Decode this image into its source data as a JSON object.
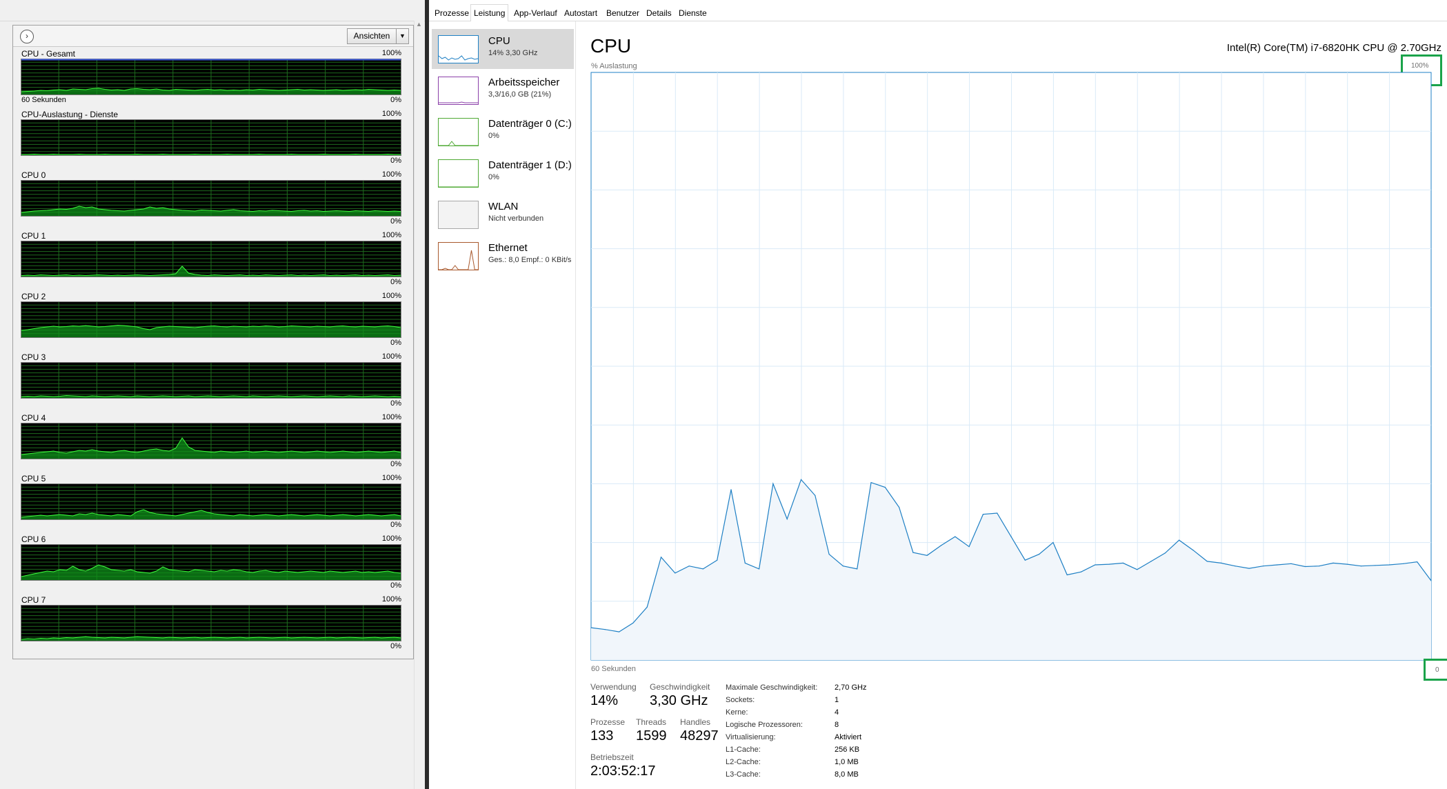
{
  "left_panel": {
    "views_button": "Ansichten",
    "collapse_glyph": "›",
    "charts": [
      {
        "label": "CPU - Gesamt",
        "max": "100%",
        "min": "0%",
        "sub": "60 Sekunden"
      },
      {
        "label": "CPU-Auslastung - Dienste",
        "max": "100%",
        "min": "0%",
        "sub": ""
      },
      {
        "label": "CPU 0",
        "max": "100%",
        "min": "0%",
        "sub": ""
      },
      {
        "label": "CPU 1",
        "max": "100%",
        "min": "0%",
        "sub": ""
      },
      {
        "label": "CPU 2",
        "max": "100%",
        "min": "0%",
        "sub": ""
      },
      {
        "label": "CPU 3",
        "max": "100%",
        "min": "0%",
        "sub": ""
      },
      {
        "label": "CPU 4",
        "max": "100%",
        "min": "0%",
        "sub": ""
      },
      {
        "label": "CPU 5",
        "max": "100%",
        "min": "0%",
        "sub": ""
      },
      {
        "label": "CPU 6",
        "max": "100%",
        "min": "0%",
        "sub": ""
      },
      {
        "label": "CPU 7",
        "max": "100%",
        "min": "0%",
        "sub": ""
      }
    ],
    "series": [
      [
        8,
        9,
        10,
        12,
        11,
        13,
        14,
        12,
        16,
        15,
        14,
        17,
        18,
        15,
        13,
        14,
        12,
        16,
        17,
        15,
        14,
        16,
        13,
        12,
        15,
        14,
        13,
        12,
        14,
        15,
        13,
        14,
        12,
        13,
        12,
        14,
        13,
        15,
        14,
        13,
        12,
        13,
        14,
        15,
        13,
        14,
        13,
        12,
        13,
        14,
        12,
        13,
        14,
        13,
        15,
        14,
        13,
        12,
        13,
        12
      ],
      [
        2,
        2,
        3,
        2,
        2,
        3,
        2,
        2,
        2,
        3,
        2,
        2,
        2,
        3,
        2,
        2,
        2,
        2,
        3,
        2,
        2,
        2,
        3,
        2,
        2,
        2,
        2,
        3,
        2,
        2,
        2,
        2,
        3,
        2,
        2,
        2,
        2,
        3,
        2,
        2,
        2,
        2,
        3,
        2,
        2,
        2,
        2,
        3,
        2,
        2,
        2,
        2,
        3,
        2,
        2,
        2,
        2,
        3,
        2,
        2
      ],
      [
        10,
        12,
        14,
        15,
        16,
        18,
        20,
        19,
        22,
        28,
        24,
        26,
        20,
        18,
        16,
        15,
        14,
        16,
        18,
        20,
        26,
        22,
        24,
        20,
        18,
        16,
        15,
        14,
        17,
        16,
        15,
        14,
        16,
        18,
        15,
        14,
        13,
        15,
        14,
        16,
        15,
        14,
        13,
        15,
        16,
        14,
        15,
        13,
        14,
        15,
        14,
        13,
        15,
        14,
        13,
        15,
        14,
        13,
        14,
        13
      ],
      [
        3,
        4,
        3,
        5,
        4,
        3,
        4,
        5,
        3,
        4,
        3,
        4,
        5,
        4,
        3,
        4,
        3,
        4,
        5,
        4,
        3,
        4,
        5,
        6,
        8,
        30,
        10,
        6,
        4,
        3,
        5,
        4,
        3,
        4,
        5,
        3,
        4,
        3,
        5,
        4,
        3,
        4,
        5,
        3,
        4,
        3,
        4,
        5,
        3,
        4,
        3,
        4,
        5,
        3,
        4,
        3,
        4,
        5,
        3,
        4
      ],
      [
        20,
        22,
        25,
        28,
        30,
        32,
        30,
        31,
        33,
        32,
        34,
        32,
        30,
        31,
        33,
        35,
        34,
        32,
        30,
        25,
        22,
        28,
        30,
        32,
        31,
        30,
        29,
        28,
        30,
        32,
        33,
        31,
        30,
        32,
        31,
        30,
        32,
        31,
        33,
        32,
        30,
        31,
        33,
        32,
        31,
        30,
        32,
        31,
        30,
        32,
        33,
        31,
        30,
        32,
        31,
        30,
        32,
        33,
        31,
        28
      ],
      [
        4,
        5,
        4,
        6,
        5,
        4,
        5,
        7,
        6,
        5,
        4,
        6,
        5,
        4,
        5,
        6,
        5,
        4,
        6,
        5,
        4,
        5,
        6,
        5,
        4,
        5,
        6,
        4,
        5,
        6,
        5,
        4,
        5,
        6,
        5,
        4,
        6,
        5,
        4,
        5,
        6,
        5,
        4,
        5,
        6,
        5,
        4,
        5,
        6,
        5,
        4,
        6,
        5,
        4,
        5,
        6,
        5,
        4,
        5,
        4
      ],
      [
        12,
        14,
        16,
        18,
        20,
        22,
        18,
        16,
        20,
        24,
        22,
        26,
        22,
        20,
        18,
        22,
        24,
        20,
        18,
        22,
        26,
        28,
        24,
        22,
        30,
        60,
        34,
        24,
        22,
        20,
        18,
        22,
        20,
        18,
        20,
        22,
        18,
        20,
        22,
        20,
        18,
        20,
        22,
        20,
        18,
        20,
        22,
        20,
        18,
        20,
        22,
        20,
        18,
        20,
        22,
        20,
        18,
        20,
        22,
        18
      ],
      [
        6,
        8,
        10,
        12,
        10,
        12,
        14,
        12,
        10,
        16,
        14,
        18,
        14,
        12,
        10,
        14,
        12,
        10,
        22,
        28,
        20,
        16,
        14,
        12,
        10,
        14,
        18,
        22,
        26,
        20,
        16,
        14,
        12,
        10,
        14,
        12,
        10,
        12,
        14,
        12,
        10,
        12,
        14,
        12,
        10,
        12,
        14,
        12,
        10,
        12,
        14,
        12,
        10,
        12,
        14,
        12,
        10,
        12,
        14,
        10
      ],
      [
        10,
        14,
        18,
        22,
        26,
        24,
        30,
        28,
        40,
        30,
        26,
        34,
        44,
        38,
        30,
        28,
        26,
        30,
        24,
        22,
        20,
        26,
        38,
        30,
        28,
        26,
        24,
        30,
        28,
        26,
        24,
        28,
        26,
        30,
        28,
        24,
        22,
        26,
        28,
        24,
        22,
        26,
        24,
        22,
        24,
        26,
        24,
        22,
        26,
        24,
        22,
        24,
        26,
        22,
        24,
        22,
        24,
        26,
        22,
        20
      ],
      [
        4,
        6,
        5,
        7,
        6,
        8,
        7,
        9,
        8,
        10,
        12,
        10,
        9,
        8,
        10,
        9,
        8,
        10,
        12,
        11,
        10,
        9,
        8,
        10,
        9,
        8,
        9,
        10,
        8,
        9,
        10,
        9,
        8,
        9,
        10,
        8,
        9,
        10,
        9,
        8,
        9,
        10,
        8,
        9,
        10,
        9,
        8,
        9,
        10,
        8,
        9,
        10,
        9,
        8,
        9,
        10,
        8,
        9,
        10,
        8
      ]
    ]
  },
  "tabs": [
    "Prozesse",
    "Leistung",
    "App-Verlauf",
    "Autostart",
    "Benutzer",
    "Details",
    "Dienste"
  ],
  "active_tab": "Leistung",
  "sidebar": [
    {
      "title": "CPU",
      "sub": "14% 3,30 GHz",
      "color": "#1d7fc4",
      "selected": true
    },
    {
      "title": "Arbeitsspeicher",
      "sub": "3,3/16,0 GB (21%)",
      "color": "#8b3fa8",
      "selected": false
    },
    {
      "title": "Datenträger 0 (C:)",
      "sub": "0%",
      "color": "#4da832",
      "selected": false
    },
    {
      "title": "Datenträger 1 (D:)",
      "sub": "0%",
      "color": "#4da832",
      "selected": false
    },
    {
      "title": "WLAN",
      "sub": "Nicht verbunden",
      "color": "#a8a8a8",
      "selected": false
    },
    {
      "title": "Ethernet",
      "sub": "Ges.: 8,0 Empf.: 0 KBit/s",
      "color": "#a8582c",
      "selected": false
    }
  ],
  "main": {
    "title": "CPU",
    "cpu_name": "Intel(R) Core(TM) i7-6820HK CPU @ 2.70GHz",
    "y_axis_label": "% Auslastung",
    "y_max": "100%",
    "y_min": "0",
    "x_axis_label": "60 Sekunden",
    "stats": {
      "usage_label": "Verwendung",
      "usage_value": "14%",
      "speed_label": "Geschwindigkeit",
      "speed_value": "3,30 GHz",
      "processes_label": "Prozesse",
      "processes_value": "133",
      "threads_label": "Threads",
      "threads_value": "1599",
      "handles_label": "Handles",
      "handles_value": "48297",
      "uptime_label": "Betriebszeit",
      "uptime_value": "2:03:52:17"
    },
    "specs": [
      {
        "key": "Maximale Geschwindigkeit:",
        "value": "2,70 GHz"
      },
      {
        "key": "Sockets:",
        "value": "1"
      },
      {
        "key": "Kerne:",
        "value": "4"
      },
      {
        "key": "Logische Prozessoren:",
        "value": "8"
      },
      {
        "key": "Virtualisierung:",
        "value": "Aktiviert"
      },
      {
        "key": "L1-Cache:",
        "value": "256 KB"
      },
      {
        "key": "L2-Cache:",
        "value": "1,0 MB"
      },
      {
        "key": "L3-Cache:",
        "value": "8,0 MB"
      }
    ]
  },
  "chart_data": {
    "type": "area",
    "ylabel": "% Auslastung",
    "xlabel": "60 Sekunden",
    "ylim": [
      0,
      100
    ],
    "x": [
      60,
      59,
      58,
      57,
      56,
      55,
      54,
      53,
      52,
      51,
      50,
      49,
      48,
      47,
      46,
      45,
      44,
      43,
      42,
      41,
      40,
      39,
      38,
      37,
      36,
      35,
      34,
      33,
      32,
      31,
      30,
      29,
      28,
      27,
      26,
      25,
      24,
      23,
      22,
      21,
      20,
      19,
      18,
      17,
      16,
      15,
      14,
      13,
      12,
      11,
      10,
      9,
      8,
      7,
      6,
      5,
      4,
      3,
      2,
      1,
      0
    ],
    "series": [
      {
        "values": [
          5.5,
          5.2,
          4.8,
          6.3,
          9.0,
          17.5,
          14.8,
          16.0,
          15.5,
          17.0,
          29.0,
          16.5,
          15.5,
          30.0,
          24.0,
          30.7,
          28.0,
          18.0,
          16.0,
          15.5,
          30.2,
          29.4,
          26.0,
          18.3,
          17.8,
          19.5,
          21.0,
          19.3,
          24.8,
          25.0,
          21.0,
          17.0,
          18.0,
          20.0,
          14.5,
          15.0,
          16.2,
          16.3,
          16.5,
          15.4,
          16.8,
          18.2,
          20.4,
          18.7,
          16.8,
          16.5,
          16.0,
          15.6,
          16.0,
          16.2,
          16.4,
          15.9,
          16.0,
          16.5,
          16.3,
          16.0,
          16.1,
          16.2,
          16.4,
          16.7,
          13.5
        ]
      }
    ]
  }
}
